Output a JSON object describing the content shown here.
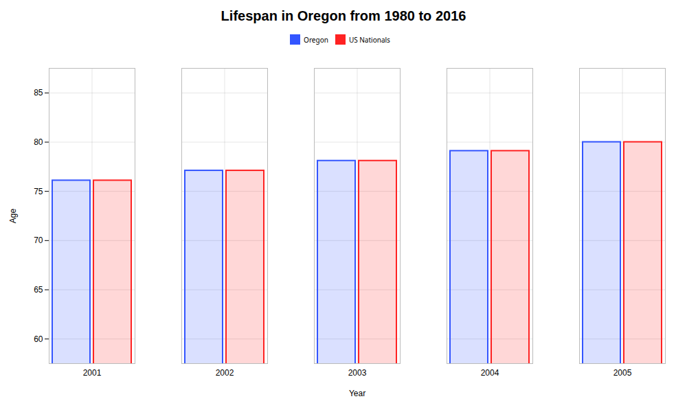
{
  "chart_data": {
    "type": "bar",
    "title": "Lifespan in Oregon from 1980 to 2016",
    "xlabel": "Year",
    "ylabel": "Age",
    "categories": [
      "2001",
      "2002",
      "2003",
      "2004",
      "2005"
    ],
    "series": [
      {
        "name": "Oregon",
        "color": "#3355ff",
        "values": [
          76.1,
          77.1,
          78.1,
          79.1,
          80.0
        ]
      },
      {
        "name": "US Nationals",
        "color": "#ff2222",
        "values": [
          76.1,
          77.1,
          78.1,
          79.1,
          80.0
        ]
      }
    ],
    "ylim": [
      57.5,
      87.5
    ],
    "yticks": [
      60,
      65,
      70,
      75,
      80,
      85
    ],
    "grid": true,
    "legend": "top"
  }
}
